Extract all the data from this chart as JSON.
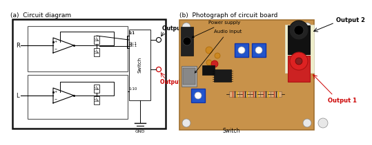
{
  "panel_a_title": "(a)  Circuit diagram",
  "panel_b_title": "(b)  Photograph of circuit board",
  "output2_label": "Output 2",
  "output1_label": "Output 1",
  "switch_label": "Switch",
  "gnd_label": "GND",
  "r_label": "R",
  "l_label": "L",
  "ratio_11": "1:1",
  "ratio_1k1": "1k:1",
  "ratio_110": "1:10",
  "power_supply_label": "Power supply",
  "audio_input_label": "Audio input",
  "switch_label_b": "Switch",
  "output1_color": "#cc0000",
  "output2_color": "#000000",
  "bg_color": "#ffffff",
  "board_color": "#c8924a",
  "board_border": "#a07030"
}
